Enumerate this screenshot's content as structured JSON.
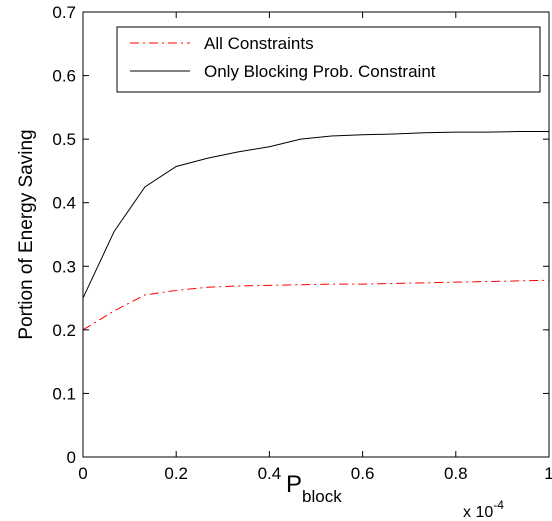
{
  "chart_data": {
    "type": "line",
    "xlabel": {
      "main": "P",
      "subscript": "block"
    },
    "ylabel": "Portion of Energy Saving",
    "x_multiplier": {
      "base": "x 10",
      "exponent": "-4"
    },
    "xlim": [
      0,
      1
    ],
    "ylim": [
      0,
      0.7
    ],
    "x_ticks": [
      0,
      0.2,
      0.4,
      0.6,
      0.8,
      1
    ],
    "x_tick_labels": [
      "0",
      "0.2",
      "0.4",
      "0.6",
      "0.8",
      "1"
    ],
    "y_ticks": [
      0,
      0.1,
      0.2,
      0.3,
      0.4,
      0.5,
      0.6,
      0.7
    ],
    "y_tick_labels": [
      "0",
      "0.1",
      "0.2",
      "0.3",
      "0.4",
      "0.5",
      "0.6",
      "0.7"
    ],
    "grid": false,
    "legend_position": "top-right",
    "series": [
      {
        "name": "All Constraints",
        "color": "#ff0000",
        "style": "dash-dot",
        "x": [
          0,
          0.067,
          0.133,
          0.2,
          0.267,
          0.333,
          0.4,
          0.467,
          0.533,
          0.6,
          0.667,
          0.733,
          0.8,
          0.867,
          0.933,
          1
        ],
        "y": [
          0.2,
          0.23,
          0.255,
          0.262,
          0.267,
          0.269,
          0.27,
          0.271,
          0.272,
          0.272,
          0.273,
          0.274,
          0.275,
          0.276,
          0.277,
          0.278
        ]
      },
      {
        "name": "Only Blocking Prob. Constraint",
        "color": "#000000",
        "style": "solid",
        "x": [
          0,
          0.067,
          0.133,
          0.2,
          0.267,
          0.333,
          0.4,
          0.467,
          0.533,
          0.6,
          0.667,
          0.733,
          0.8,
          0.867,
          0.933,
          1
        ],
        "y": [
          0.25,
          0.355,
          0.425,
          0.457,
          0.47,
          0.48,
          0.488,
          0.5,
          0.505,
          0.507,
          0.508,
          0.51,
          0.511,
          0.511,
          0.512,
          0.512
        ]
      }
    ]
  }
}
